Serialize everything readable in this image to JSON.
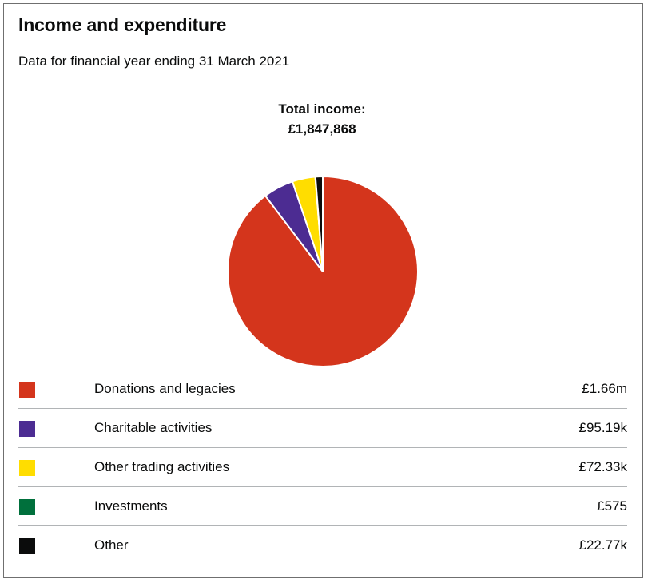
{
  "section": {
    "title": "Income and expenditure",
    "subtitle": "Data for financial year ending 31 March 2021"
  },
  "total": {
    "label": "Total income:",
    "value": "£1,847,868"
  },
  "chart_data": {
    "type": "pie",
    "title": "Total income: £1,847,868",
    "total": 1847868,
    "legend": "below",
    "categories": [
      "Donations and legacies",
      "Charitable activities",
      "Other trading activities",
      "Investments",
      "Other"
    ],
    "values": [
      1657000,
      95190,
      72330,
      575,
      22770
    ],
    "value_labels": [
      "£1.66m",
      "£95.19k",
      "£72.33k",
      "£575",
      "£22.77k"
    ],
    "colors": [
      "#d4351c",
      "#4c2c92",
      "#ffdd00",
      "#00703c",
      "#0b0c0c"
    ]
  }
}
